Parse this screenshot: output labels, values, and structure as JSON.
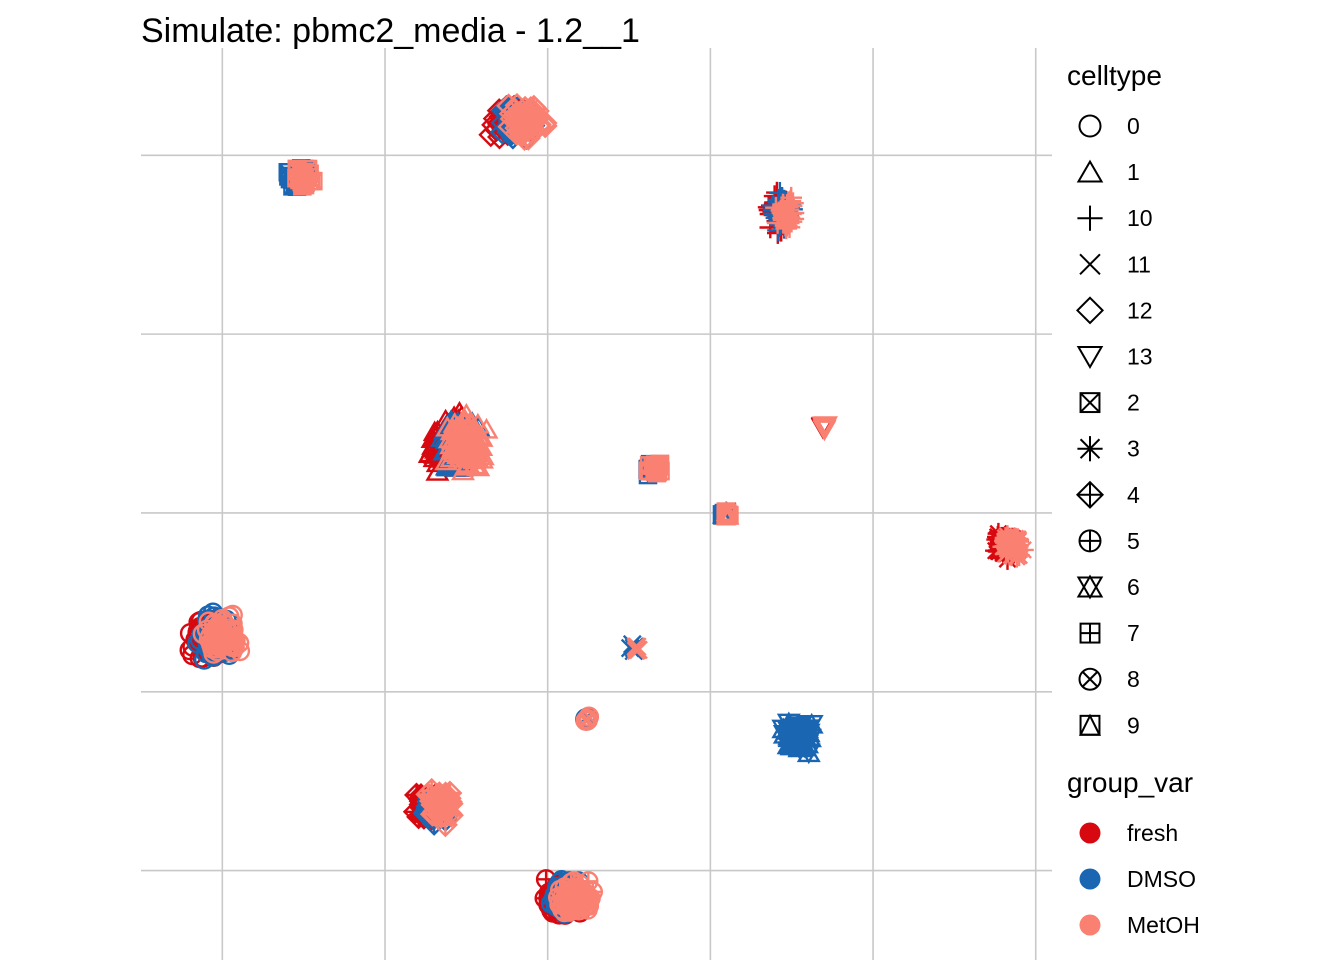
{
  "chart_data": {
    "type": "scatter",
    "title": "Simulate: pbmc2_media - 1.2__1",
    "xlabel": "",
    "ylabel": "",
    "grid": true,
    "axis_ticks_labeled": false,
    "xlim": [
      0,
      5.6
    ],
    "ylim": [
      0,
      5.1
    ],
    "x_gridlines": [
      0.5,
      1.5,
      2.5,
      3.5,
      4.5,
      5.5
    ],
    "y_gridlines": [
      0.5,
      1.5,
      2.5,
      3.5,
      4.5
    ],
    "legend": {
      "placement": "right",
      "shape_title": "celltype",
      "shapes": [
        {
          "label": "0",
          "icon": "circle-icon"
        },
        {
          "label": "1",
          "icon": "triangle-icon"
        },
        {
          "label": "10",
          "icon": "plus-icon"
        },
        {
          "label": "11",
          "icon": "cross-icon"
        },
        {
          "label": "12",
          "icon": "diamond-icon"
        },
        {
          "label": "13",
          "icon": "triangle-down-icon"
        },
        {
          "label": "2",
          "icon": "square-cross-icon"
        },
        {
          "label": "3",
          "icon": "asterisk-icon"
        },
        {
          "label": "4",
          "icon": "diamond-plus-icon"
        },
        {
          "label": "5",
          "icon": "circle-plus-icon"
        },
        {
          "label": "6",
          "icon": "star-of-david-icon"
        },
        {
          "label": "7",
          "icon": "square-plus-icon"
        },
        {
          "label": "8",
          "icon": "circle-cross-icon"
        },
        {
          "label": "9",
          "icon": "square-triangle-icon"
        }
      ],
      "color_title": "group_var",
      "colors": [
        {
          "label": "fresh",
          "color": "#d7080f"
        },
        {
          "label": "DMSO",
          "color": "#1a66b2"
        },
        {
          "label": "MetOH",
          "color": "#fa8072"
        }
      ]
    },
    "clusters": [
      {
        "celltype": "0",
        "x": 0.45,
        "y": 1.8,
        "rx": 0.18,
        "ry": 0.2,
        "groups": [
          "fresh",
          "DMSO",
          "MetOH"
        ]
      },
      {
        "celltype": "1",
        "x": 1.95,
        "y": 2.9,
        "rx": 0.2,
        "ry": 0.26,
        "groups": [
          "fresh",
          "DMSO",
          "MetOH"
        ]
      },
      {
        "celltype": "10",
        "x": 3.94,
        "y": 4.17,
        "rx": 0.1,
        "ry": 0.19,
        "groups": [
          "fresh",
          "DMSO",
          "MetOH"
        ]
      },
      {
        "celltype": "11",
        "x": 3.04,
        "y": 1.75,
        "rx": 0.05,
        "ry": 0.05,
        "groups": [
          "DMSO",
          "MetOH"
        ]
      },
      {
        "celltype": "12",
        "x": 2.32,
        "y": 4.69,
        "rx": 0.19,
        "ry": 0.16,
        "groups": [
          "fresh",
          "DMSO",
          "MetOH"
        ]
      },
      {
        "celltype": "13",
        "x": 4.2,
        "y": 2.98,
        "rx": 0.03,
        "ry": 0.03,
        "groups": [
          "fresh",
          "MetOH"
        ]
      },
      {
        "celltype": "2",
        "x": 0.98,
        "y": 4.38,
        "rx": 0.11,
        "ry": 0.1,
        "groups": [
          "DMSO",
          "MetOH"
        ]
      },
      {
        "celltype": "3",
        "x": 5.33,
        "y": 2.3,
        "rx": 0.12,
        "ry": 0.14,
        "groups": [
          "fresh",
          "MetOH"
        ]
      },
      {
        "celltype": "4",
        "x": 1.8,
        "y": 0.86,
        "rx": 0.13,
        "ry": 0.16,
        "groups": [
          "fresh",
          "DMSO",
          "MetOH"
        ]
      },
      {
        "celltype": "5",
        "x": 2.63,
        "y": 0.35,
        "rx": 0.19,
        "ry": 0.17,
        "groups": [
          "fresh",
          "DMSO",
          "MetOH"
        ]
      },
      {
        "celltype": "6",
        "x": 4.03,
        "y": 1.25,
        "rx": 0.16,
        "ry": 0.15,
        "groups": [
          "DMSO"
        ]
      },
      {
        "celltype": "7",
        "x": 3.15,
        "y": 2.75,
        "rx": 0.08,
        "ry": 0.08,
        "groups": [
          "DMSO",
          "MetOH"
        ]
      },
      {
        "celltype": "8",
        "x": 2.74,
        "y": 1.35,
        "rx": 0.03,
        "ry": 0.03,
        "groups": [
          "DMSO",
          "MetOH"
        ]
      },
      {
        "celltype": "9",
        "x": 3.6,
        "y": 2.49,
        "rx": 0.05,
        "ry": 0.05,
        "groups": [
          "DMSO",
          "MetOH"
        ]
      }
    ]
  }
}
